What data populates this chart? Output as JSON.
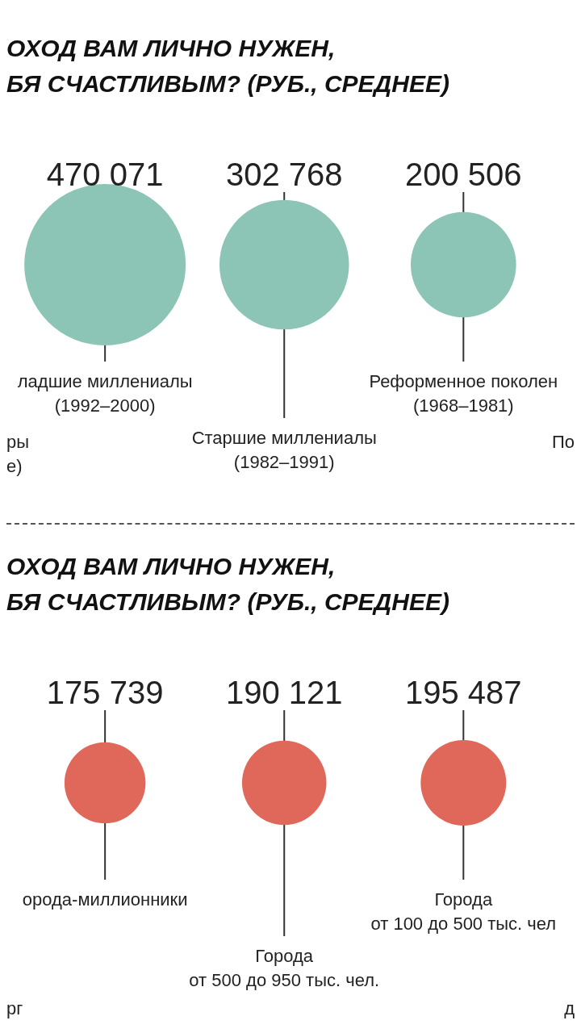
{
  "chart_data": [
    {
      "type": "other",
      "title": "ОХОД ВАМ ЛИЧНО НУЖЕН,\nБЯ СЧАСТЛИВЫМ? (РУБ., СРЕДНЕЕ)",
      "categories": [
        "ладшие миллениалы\n(1992–2000)",
        "Старшие миллениалы\n(1982–1991)",
        "Реформенное поколен\n(1968–1981)"
      ],
      "values": [
        470071,
        302768,
        200506
      ],
      "value_labels": [
        "470 071",
        "302 768",
        "200 506"
      ],
      "color": "#8cc5b6",
      "annotations": [
        "ры\nе)",
        "По"
      ]
    },
    {
      "type": "other",
      "title": "ОХОД ВАМ ЛИЧНО НУЖЕН,\nБЯ СЧАСТЛИВЫМ? (РУБ., СРЕДНЕЕ)",
      "categories": [
        "орода-миллионники",
        "Города\nот 500 до 950 тыс. чел.",
        "Города\nот 100 до 500 тыс. чел"
      ],
      "values": [
        175739,
        190121,
        195487
      ],
      "value_labels": [
        "175 739",
        "190 121",
        "195 487"
      ],
      "color": "#e0685a",
      "annotations": [
        "рг",
        "д"
      ]
    }
  ]
}
